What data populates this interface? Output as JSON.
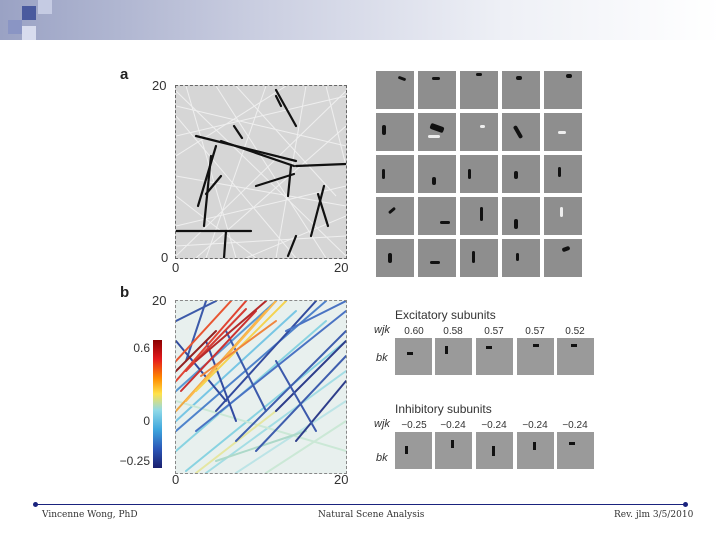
{
  "footer": {
    "author": "Vincenne Wong, PhD",
    "course": "Natural Scene Analysis",
    "revision": "Rev. jlm 3/5/2010"
  },
  "panel_a": {
    "label": "a",
    "axis_y_max": "20",
    "axis_y_min": "0",
    "axis_x_min": "0",
    "axis_x_max": "20"
  },
  "panel_b": {
    "label": "b",
    "axis_y_max": "20",
    "axis_x_min": "0",
    "axis_x_max": "20",
    "colorbar_top": "0.6",
    "colorbar_mid": "0",
    "colorbar_bottom": "−0.25",
    "excitatory_title": "Excitatory subunits",
    "inhibitory_title": "Inhibitory subunits",
    "weight_label": "wjk",
    "basis_label": "bk",
    "excitatory_weights": [
      "0.60",
      "0.58",
      "0.57",
      "0.57",
      "0.52"
    ],
    "inhibitory_weights": [
      "−0.25",
      "−0.24",
      "−0.24",
      "−0.24",
      "−0.24"
    ]
  }
}
